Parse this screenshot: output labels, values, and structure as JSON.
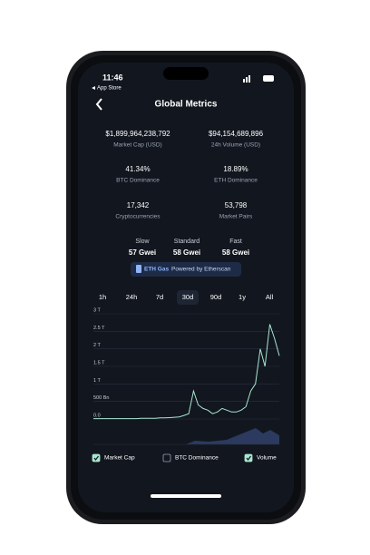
{
  "status_bar": {
    "time": "11:46",
    "back": "App Store"
  },
  "header": {
    "title": "Global Metrics"
  },
  "metrics": [
    {
      "value": "$1,899,964,238,792",
      "label": "Market Cap (USD)"
    },
    {
      "value": "$94,154,689,896",
      "label": "24h Volume (USD)"
    },
    {
      "value": "41.34%",
      "label": "BTC Dominance"
    },
    {
      "value": "18.89%",
      "label": "ETH Dominance"
    },
    {
      "value": "17,342",
      "label": "Cryptocurrencies"
    },
    {
      "value": "53,798",
      "label": "Market Pairs"
    }
  ],
  "gas": [
    {
      "label": "Slow",
      "value": "57 Gwei"
    },
    {
      "label": "Standard",
      "value": "58 Gwei"
    },
    {
      "label": "Fast",
      "value": "58 Gwei"
    }
  ],
  "gas_badge": {
    "title": "ETH Gas",
    "text": "Powered by Etherscan"
  },
  "ranges": [
    "1h",
    "24h",
    "7d",
    "30d",
    "90d",
    "1y",
    "All"
  ],
  "chart": {
    "type": "line",
    "ylim": [
      0,
      3
    ],
    "yticks": [
      {
        "value": 3,
        "label": "3 T"
      },
      {
        "value": 2.5,
        "label": "2.5 T"
      },
      {
        "value": 2,
        "label": "2 T"
      },
      {
        "value": 1.5,
        "label": "1.5 T"
      },
      {
        "value": 1,
        "label": "1 T"
      },
      {
        "value": 0.5,
        "label": "500 Bn"
      },
      {
        "value": 0,
        "label": "0.0"
      }
    ],
    "series": [
      {
        "name": "Market Cap",
        "color": "#a8e6cf",
        "values": [
          0.01,
          0.01,
          0.01,
          0.01,
          0.01,
          0.01,
          0.01,
          0.01,
          0.01,
          0.01,
          0.02,
          0.02,
          0.02,
          0.02,
          0.03,
          0.03,
          0.04,
          0.05,
          0.06,
          0.1,
          0.15,
          0.8,
          0.4,
          0.3,
          0.25,
          0.15,
          0.2,
          0.3,
          0.25,
          0.2,
          0.2,
          0.25,
          0.35,
          0.8,
          1.0,
          2.0,
          1.5,
          2.7,
          2.3,
          1.8
        ]
      }
    ]
  },
  "legend": [
    {
      "label": "Market Cap",
      "checked": true
    },
    {
      "label": "BTC Dominance",
      "checked": false
    },
    {
      "label": "Volume",
      "checked": true
    }
  ]
}
